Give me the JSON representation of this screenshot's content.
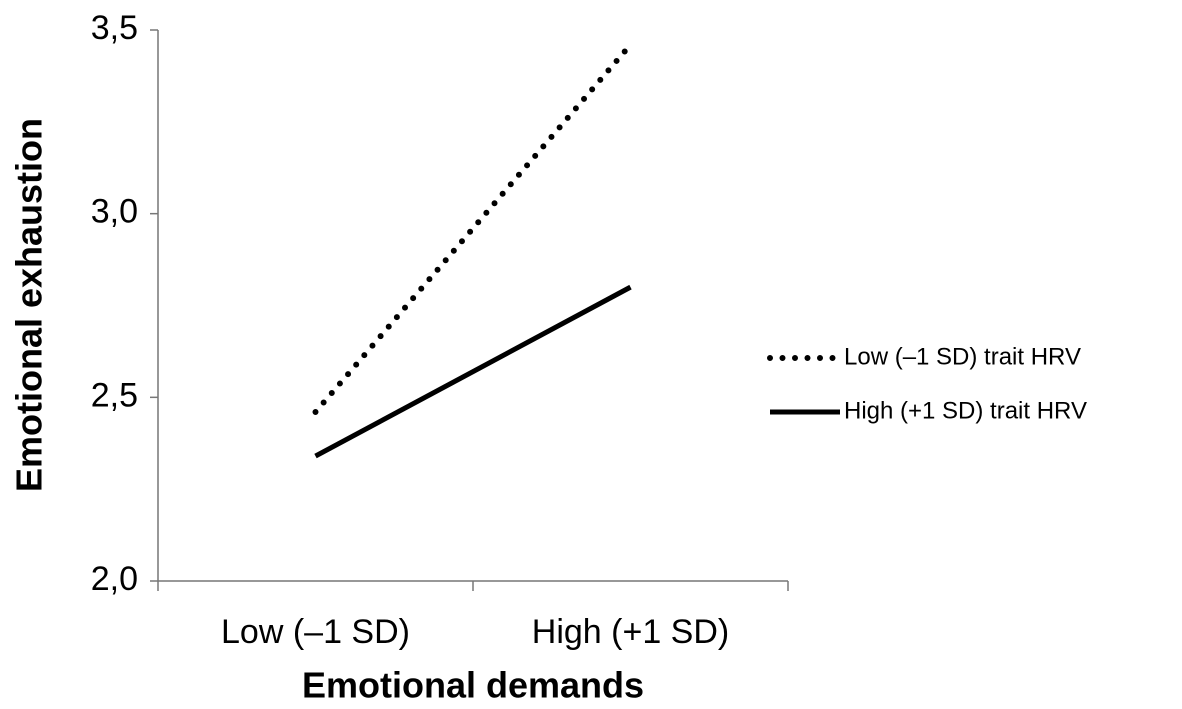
{
  "chart_data": {
    "type": "line",
    "x_label": "Emotional demands",
    "y_label": "Emotional exhaustion",
    "categories": [
      "Low (–1 SD)",
      "High (+1 SD)"
    ],
    "series": [
      {
        "name": "Low (–1 SD) trait HRV",
        "color": "#000000",
        "style": "dotted",
        "values": [
          2.46,
          3.46
        ]
      },
      {
        "name": "High (+1 SD) trait HRV",
        "color": "#000000",
        "style": "solid",
        "values": [
          2.34,
          2.8
        ]
      }
    ],
    "ylim": [
      2.0,
      3.5
    ],
    "yticks": [
      {
        "value": 2.0,
        "label": "2,0"
      },
      {
        "value": 2.5,
        "label": "2,5"
      },
      {
        "value": 3.0,
        "label": "3,0"
      },
      {
        "value": 3.5,
        "label": "3,5"
      }
    ],
    "legend": "right",
    "grid": false
  }
}
